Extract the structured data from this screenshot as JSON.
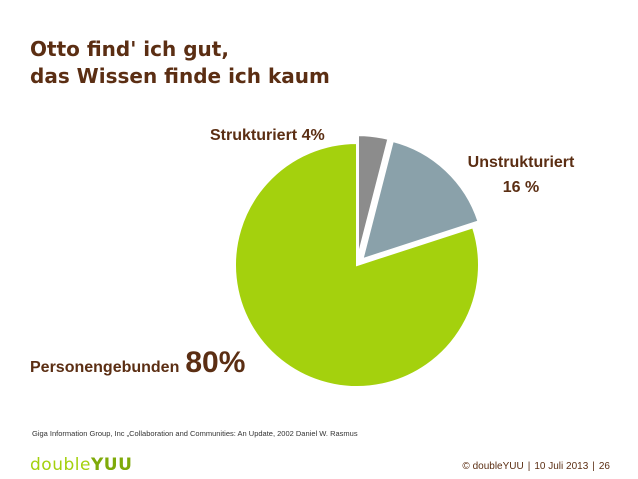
{
  "title": {
    "line1": "Otto find' ich gut,",
    "line2": "das Wissen finde ich kaum"
  },
  "chart_data": {
    "type": "pie",
    "slices": [
      {
        "label": "Strukturiert",
        "value": 4,
        "color": "#8c8c8c",
        "exploded": true
      },
      {
        "label": "Unstrukturiert",
        "value": 16,
        "color": "#8aa1aa",
        "exploded": true
      },
      {
        "label": "Personengebunden",
        "value": 80,
        "color": "#a4d10d",
        "exploded": false
      }
    ],
    "labels": {
      "struct": "Strukturiert 4%",
      "unstruct_line1": "Unstrukturiert",
      "unstruct_line2": "16 %",
      "person_name": "Personengebunden",
      "person_value": "80%"
    }
  },
  "source": "Giga Information Group, Inc „Collaboration and Communities: An Update, 2002 Daniel W. Rasmus",
  "footer": {
    "logo_part1": "double",
    "logo_part2": "YUU",
    "copyright": "© doubleYUU",
    "sep1": "|",
    "date": "10 Juli 2013",
    "sep2": "|",
    "page": "26"
  },
  "colors": {
    "brown": "#5b2e13",
    "green": "#a4d10d",
    "grey": "#8c8c8c",
    "blue_grey": "#8aa1aa"
  }
}
